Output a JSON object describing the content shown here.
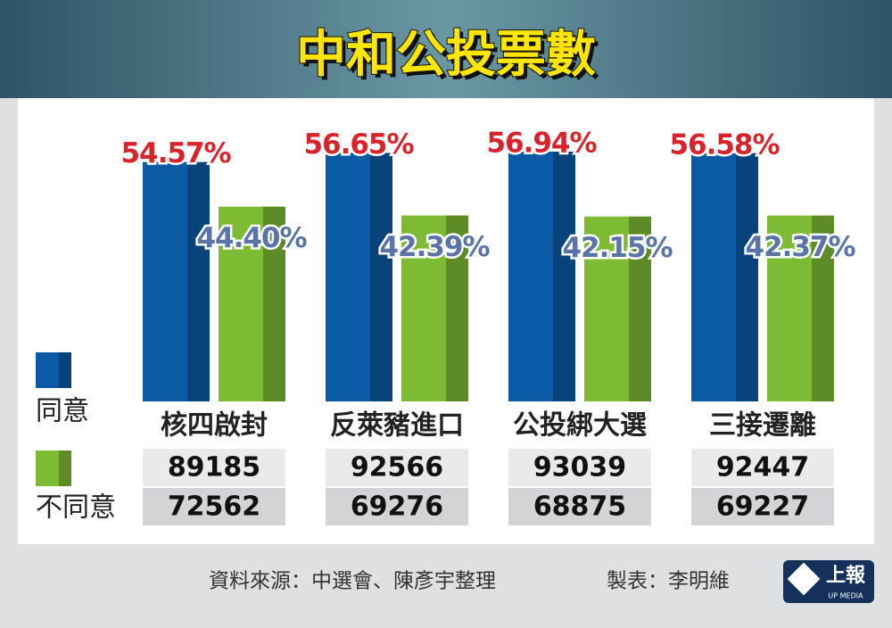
{
  "chart_data": {
    "type": "bar",
    "title": "中和公投票數",
    "categories": [
      "核四啟封",
      "反萊豬進口",
      "公投綁大選",
      "三接遷離"
    ],
    "series": [
      {
        "name": "同意",
        "color": "#0b5aa6",
        "values": [
          54.57,
          56.65,
          56.94,
          56.58
        ],
        "value_labels": [
          "54.57%",
          "56.65%",
          "56.94%",
          "56.58%"
        ],
        "votes": [
          89185,
          92566,
          93039,
          92447
        ]
      },
      {
        "name": "不同意",
        "color": "#7dbb35",
        "values": [
          44.4,
          42.39,
          42.15,
          42.37
        ],
        "value_labels": [
          "44.40%",
          "42.39%",
          "42.15%",
          "42.37%"
        ],
        "votes": [
          72562,
          69276,
          68875,
          69227
        ]
      }
    ],
    "source": "資料來源：中選會、陳彥宇整理",
    "credit": "製表：李明維",
    "logo": {
      "name": "上報",
      "subtitle": "UP MEDIA"
    }
  }
}
